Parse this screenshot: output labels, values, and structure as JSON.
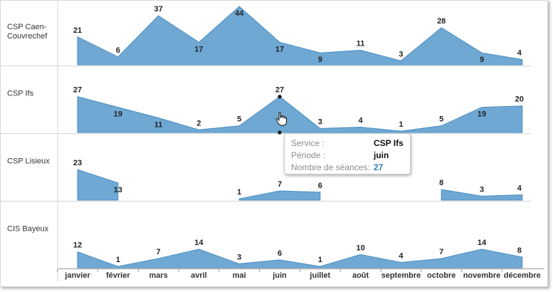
{
  "chart_data": {
    "type": "area",
    "categories": [
      "janvier",
      "février",
      "mars",
      "avril",
      "mai",
      "juin",
      "juillet",
      "août",
      "septembre",
      "octobre",
      "novembre",
      "décembre"
    ],
    "series": [
      {
        "name": "CSP Caen-\nCouvrechef",
        "values": [
          21,
          6,
          37,
          17,
          44,
          17,
          9,
          11,
          3,
          28,
          9,
          4
        ]
      },
      {
        "name": "CSP Ifs",
        "values": [
          27,
          19,
          11,
          2,
          5,
          27,
          3,
          4,
          1,
          5,
          19,
          20
        ]
      },
      {
        "name": "CSP Lisieux",
        "values": [
          23,
          13,
          null,
          null,
          1,
          7,
          6,
          null,
          null,
          8,
          3,
          4
        ]
      },
      {
        "name": "CIS Bayeux",
        "values": [
          12,
          1,
          7,
          14,
          3,
          6,
          1,
          10,
          4,
          7,
          14,
          8
        ]
      }
    ],
    "ylim": [
      0,
      44
    ],
    "fill_color": "#6fa8d3",
    "stroke_color": "#4a8ec4",
    "grid": false,
    "highlight": {
      "series": "CSP Ifs",
      "category": "juin"
    }
  },
  "tooltip": {
    "service_key": "Service :",
    "service_value": "CSP Ifs",
    "periode_key": "Période :",
    "periode_value": "juin",
    "seances_key": "Nombre de séances:",
    "seances_value": "27"
  }
}
